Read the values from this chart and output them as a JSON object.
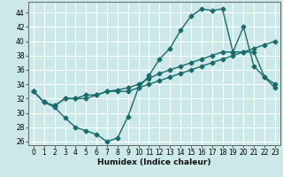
{
  "title": "",
  "xlabel": "Humidex (Indice chaleur)",
  "background_color": "#cce8e8",
  "grid_color": "#ffffff",
  "line_color": "#1a6b6b",
  "xlim": [
    -0.5,
    23.5
  ],
  "ylim": [
    25.5,
    45.5
  ],
  "xticks": [
    0,
    1,
    2,
    3,
    4,
    5,
    6,
    7,
    8,
    9,
    10,
    11,
    12,
    13,
    14,
    15,
    16,
    17,
    18,
    19,
    20,
    21,
    22,
    23
  ],
  "yticks": [
    26,
    28,
    30,
    32,
    34,
    36,
    38,
    40,
    42,
    44
  ],
  "line1_x": [
    0,
    1,
    2,
    3,
    4,
    5,
    6,
    7,
    8,
    9,
    10,
    11,
    12,
    13,
    14,
    15,
    16,
    17,
    18,
    19,
    20,
    21,
    22,
    23
  ],
  "line1_y": [
    33,
    31.5,
    30.8,
    29.3,
    28,
    27.5,
    27,
    26,
    26.5,
    29.5,
    33.5,
    35.2,
    37.5,
    39,
    41.5,
    43.5,
    44.5,
    44.3,
    44.5,
    38.5,
    42,
    36.5,
    35,
    34
  ],
  "line2_x": [
    0,
    1,
    2,
    3,
    4,
    5,
    6,
    7,
    8,
    9,
    10,
    11,
    12,
    13,
    14,
    15,
    16,
    17,
    18,
    19,
    20,
    21,
    22,
    23
  ],
  "line2_y": [
    33,
    31.5,
    31,
    32,
    32,
    32.5,
    32.5,
    33,
    33.2,
    33.5,
    34,
    34.8,
    35.5,
    36,
    36.5,
    37,
    37.5,
    38,
    38.5,
    38.5,
    38.5,
    38.5,
    35,
    33.5
  ],
  "line3_x": [
    0,
    1,
    2,
    3,
    4,
    5,
    6,
    7,
    8,
    9,
    10,
    11,
    12,
    13,
    14,
    15,
    16,
    17,
    18,
    19,
    20,
    21,
    22,
    23
  ],
  "line3_y": [
    33,
    31.5,
    31,
    32,
    32,
    32,
    32.5,
    33,
    33,
    33,
    33.5,
    34,
    34.5,
    35,
    35.5,
    36,
    36.5,
    37,
    37.5,
    38,
    38.5,
    39,
    39.5,
    40
  ],
  "marker_size": 2.5,
  "line_width": 1.0,
  "tick_fontsize": 5.5,
  "xlabel_fontsize": 6.5
}
